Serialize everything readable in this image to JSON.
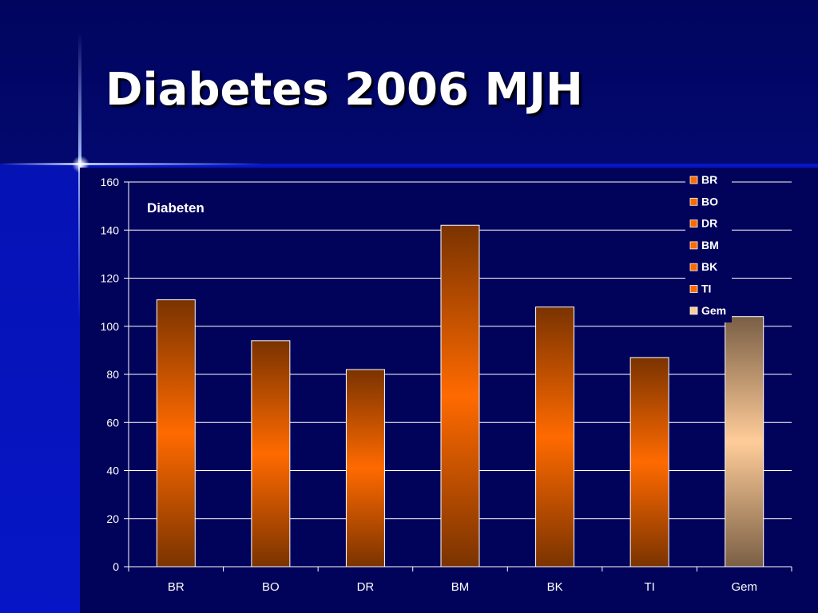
{
  "slide": {
    "title": "Diabetes 2006 MJH"
  },
  "chart_data": {
    "type": "bar",
    "title": "Diabeten",
    "xlabel": "",
    "ylabel": "",
    "ylim": [
      0,
      160
    ],
    "yticks": [
      0,
      20,
      40,
      60,
      80,
      100,
      120,
      140,
      160
    ],
    "grid": true,
    "legend_position": "top-right",
    "categories": [
      "BR",
      "BO",
      "DR",
      "BM",
      "BK",
      "TI",
      "Gem"
    ],
    "values": [
      111,
      94,
      82,
      142,
      108,
      87,
      104
    ],
    "legend": [
      "BR",
      "BO",
      "DR",
      "BM",
      "BK",
      "TI",
      "Gem"
    ],
    "colors": {
      "bar_dark": "#7a3300",
      "bar_light": "#ff6a00",
      "avg_dark": "#7a5f45",
      "avg_light": "#ffcc99",
      "grid": "#ffffff",
      "text": "#ffffff"
    }
  }
}
